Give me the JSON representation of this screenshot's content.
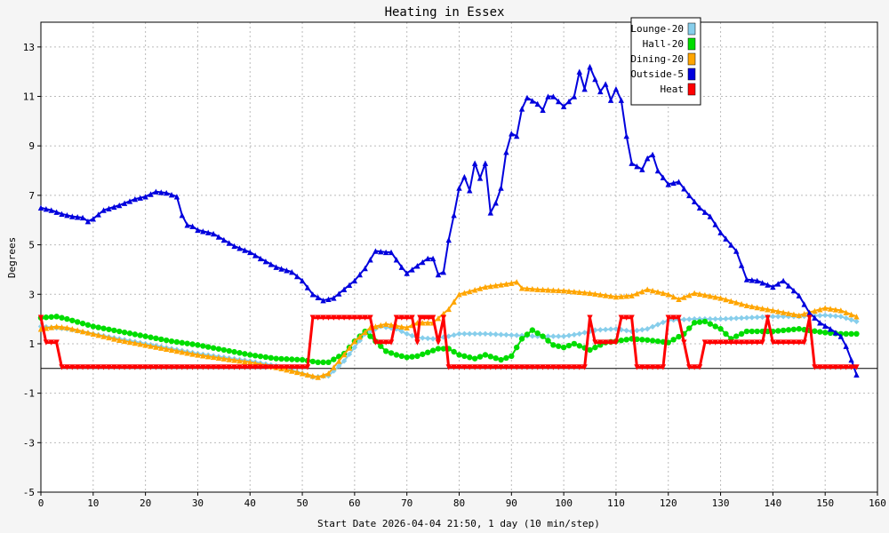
{
  "chart_data": {
    "type": "line",
    "title": "Heating in Essex",
    "xlabel": "Start Date 2026-04-04 21:50, 1 day (10 min/step)",
    "ylabel": "Degrees",
    "xlim": [
      0,
      160
    ],
    "ylim": [
      -5,
      14
    ],
    "xticks": [
      0,
      10,
      20,
      30,
      40,
      50,
      60,
      70,
      80,
      90,
      100,
      110,
      120,
      130,
      140,
      150,
      160
    ],
    "yticks": [
      -5,
      -3,
      -1,
      1,
      3,
      5,
      7,
      9,
      11,
      13
    ],
    "grid": true,
    "legend_position": "top-right",
    "series": [
      {
        "name": "Lounge-20",
        "color": "#87ceeb",
        "marker": "diamond",
        "points": [
          [
            0,
            1.7
          ],
          [
            5,
            1.6
          ],
          [
            10,
            1.4
          ],
          [
            15,
            1.2
          ],
          [
            20,
            1.0
          ],
          [
            25,
            0.8
          ],
          [
            30,
            0.6
          ],
          [
            35,
            0.45
          ],
          [
            40,
            0.3
          ],
          [
            45,
            0.1
          ],
          [
            50,
            -0.2
          ],
          [
            52,
            -0.35
          ],
          [
            55,
            -0.3
          ],
          [
            58,
            0.3
          ],
          [
            62,
            1.4
          ],
          [
            65,
            1.7
          ],
          [
            68,
            1.6
          ],
          [
            70,
            1.4
          ],
          [
            72,
            1.25
          ],
          [
            75,
            1.2
          ],
          [
            78,
            1.3
          ],
          [
            80,
            1.4
          ],
          [
            85,
            1.4
          ],
          [
            90,
            1.35
          ],
          [
            95,
            1.3
          ],
          [
            100,
            1.3
          ],
          [
            103,
            1.4
          ],
          [
            106,
            1.55
          ],
          [
            110,
            1.6
          ],
          [
            113,
            1.5
          ],
          [
            116,
            1.6
          ],
          [
            120,
            1.95
          ],
          [
            125,
            2.0
          ],
          [
            130,
            2.0
          ],
          [
            135,
            2.05
          ],
          [
            140,
            2.1
          ],
          [
            145,
            2.1
          ],
          [
            150,
            2.15
          ],
          [
            153,
            2.1
          ],
          [
            156,
            1.9
          ]
        ]
      },
      {
        "name": "Hall-20",
        "color": "#00dd00",
        "marker": "circle",
        "points": [
          [
            0,
            2.05
          ],
          [
            3,
            2.1
          ],
          [
            5,
            2.0
          ],
          [
            10,
            1.7
          ],
          [
            15,
            1.5
          ],
          [
            20,
            1.3
          ],
          [
            25,
            1.1
          ],
          [
            30,
            0.95
          ],
          [
            35,
            0.75
          ],
          [
            40,
            0.55
          ],
          [
            45,
            0.4
          ],
          [
            50,
            0.35
          ],
          [
            53,
            0.25
          ],
          [
            55,
            0.25
          ],
          [
            58,
            0.6
          ],
          [
            60,
            1.1
          ],
          [
            62,
            1.5
          ],
          [
            64,
            1.1
          ],
          [
            66,
            0.7
          ],
          [
            68,
            0.55
          ],
          [
            70,
            0.45
          ],
          [
            72,
            0.5
          ],
          [
            74,
            0.65
          ],
          [
            76,
            0.8
          ],
          [
            78,
            0.8
          ],
          [
            80,
            0.55
          ],
          [
            83,
            0.4
          ],
          [
            85,
            0.55
          ],
          [
            88,
            0.35
          ],
          [
            90,
            0.5
          ],
          [
            92,
            1.2
          ],
          [
            94,
            1.55
          ],
          [
            96,
            1.3
          ],
          [
            98,
            0.95
          ],
          [
            100,
            0.85
          ],
          [
            102,
            1.0
          ],
          [
            105,
            0.75
          ],
          [
            108,
            1.05
          ],
          [
            110,
            1.1
          ],
          [
            113,
            1.2
          ],
          [
            116,
            1.15
          ],
          [
            120,
            1.05
          ],
          [
            123,
            1.4
          ],
          [
            125,
            1.85
          ],
          [
            127,
            1.9
          ],
          [
            130,
            1.6
          ],
          [
            132,
            1.2
          ],
          [
            135,
            1.5
          ],
          [
            140,
            1.5
          ],
          [
            145,
            1.6
          ],
          [
            150,
            1.45
          ],
          [
            153,
            1.4
          ],
          [
            156,
            1.4
          ]
        ]
      },
      {
        "name": "Dining-20",
        "color": "#ffa500",
        "marker": "triangle",
        "points": [
          [
            0,
            1.6
          ],
          [
            3,
            1.7
          ],
          [
            5,
            1.65
          ],
          [
            10,
            1.4
          ],
          [
            15,
            1.15
          ],
          [
            20,
            0.95
          ],
          [
            25,
            0.75
          ],
          [
            30,
            0.55
          ],
          [
            35,
            0.4
          ],
          [
            40,
            0.25
          ],
          [
            45,
            0.05
          ],
          [
            50,
            -0.2
          ],
          [
            53,
            -0.35
          ],
          [
            55,
            -0.2
          ],
          [
            57,
            0.3
          ],
          [
            60,
            1.1
          ],
          [
            63,
            1.65
          ],
          [
            66,
            1.8
          ],
          [
            70,
            1.65
          ],
          [
            72,
            1.85
          ],
          [
            75,
            1.85
          ],
          [
            78,
            2.4
          ],
          [
            80,
            3.0
          ],
          [
            85,
            3.3
          ],
          [
            90,
            3.45
          ],
          [
            91,
            3.5
          ],
          [
            92,
            3.25
          ],
          [
            95,
            3.2
          ],
          [
            100,
            3.15
          ],
          [
            105,
            3.05
          ],
          [
            110,
            2.9
          ],
          [
            113,
            2.95
          ],
          [
            116,
            3.2
          ],
          [
            120,
            3.0
          ],
          [
            122,
            2.8
          ],
          [
            125,
            3.05
          ],
          [
            130,
            2.85
          ],
          [
            135,
            2.55
          ],
          [
            140,
            2.35
          ],
          [
            145,
            2.15
          ],
          [
            150,
            2.45
          ],
          [
            153,
            2.35
          ],
          [
            156,
            2.1
          ]
        ]
      },
      {
        "name": "Outside-5",
        "color": "#0000dd",
        "marker": "triangle",
        "points": [
          [
            0,
            6.5
          ],
          [
            2,
            6.4
          ],
          [
            4,
            6.25
          ],
          [
            6,
            6.15
          ],
          [
            8,
            6.1
          ],
          [
            9,
            5.95
          ],
          [
            10,
            6.05
          ],
          [
            12,
            6.4
          ],
          [
            15,
            6.6
          ],
          [
            18,
            6.85
          ],
          [
            20,
            6.95
          ],
          [
            22,
            7.15
          ],
          [
            24,
            7.1
          ],
          [
            26,
            6.95
          ],
          [
            27,
            6.2
          ],
          [
            28,
            5.8
          ],
          [
            29,
            5.75
          ],
          [
            30,
            5.6
          ],
          [
            33,
            5.45
          ],
          [
            35,
            5.2
          ],
          [
            37,
            4.95
          ],
          [
            40,
            4.7
          ],
          [
            42,
            4.45
          ],
          [
            45,
            4.1
          ],
          [
            48,
            3.9
          ],
          [
            50,
            3.55
          ],
          [
            52,
            3.0
          ],
          [
            54,
            2.75
          ],
          [
            56,
            2.85
          ],
          [
            58,
            3.2
          ],
          [
            60,
            3.55
          ],
          [
            62,
            4.05
          ],
          [
            64,
            4.75
          ],
          [
            66,
            4.7
          ],
          [
            67,
            4.7
          ],
          [
            69,
            4.1
          ],
          [
            70,
            3.85
          ],
          [
            72,
            4.15
          ],
          [
            74,
            4.45
          ],
          [
            75,
            4.45
          ],
          [
            76,
            3.8
          ],
          [
            77,
            3.9
          ],
          [
            78,
            5.2
          ],
          [
            79,
            6.2
          ],
          [
            80,
            7.3
          ],
          [
            81,
            7.75
          ],
          [
            82,
            7.2
          ],
          [
            83,
            8.3
          ],
          [
            84,
            7.7
          ],
          [
            85,
            8.3
          ],
          [
            86,
            6.3
          ],
          [
            87,
            6.7
          ],
          [
            88,
            7.3
          ],
          [
            89,
            8.75
          ],
          [
            90,
            9.5
          ],
          [
            91,
            9.4
          ],
          [
            92,
            10.5
          ],
          [
            93,
            10.95
          ],
          [
            95,
            10.7
          ],
          [
            96,
            10.45
          ],
          [
            97,
            11.0
          ],
          [
            98,
            11.0
          ],
          [
            100,
            10.6
          ],
          [
            102,
            11.0
          ],
          [
            103,
            12.0
          ],
          [
            104,
            11.3
          ],
          [
            105,
            12.2
          ],
          [
            107,
            11.2
          ],
          [
            108,
            11.5
          ],
          [
            109,
            10.85
          ],
          [
            110,
            11.3
          ],
          [
            111,
            10.85
          ],
          [
            112,
            9.4
          ],
          [
            113,
            8.3
          ],
          [
            115,
            8.05
          ],
          [
            116,
            8.5
          ],
          [
            117,
            8.65
          ],
          [
            118,
            8.0
          ],
          [
            120,
            7.45
          ],
          [
            122,
            7.55
          ],
          [
            124,
            7.0
          ],
          [
            126,
            6.5
          ],
          [
            128,
            6.15
          ],
          [
            130,
            5.5
          ],
          [
            133,
            4.75
          ],
          [
            135,
            3.6
          ],
          [
            137,
            3.55
          ],
          [
            140,
            3.3
          ],
          [
            142,
            3.55
          ],
          [
            145,
            2.95
          ],
          [
            147,
            2.25
          ],
          [
            149,
            1.85
          ],
          [
            151,
            1.6
          ],
          [
            153,
            1.3
          ],
          [
            154,
            0.9
          ],
          [
            155,
            0.35
          ],
          [
            156,
            -0.25
          ]
        ]
      },
      {
        "name": "Heat",
        "color": "#ff0000",
        "marker": "triangle-down",
        "points": [
          [
            0,
            2.05
          ],
          [
            1,
            1.05
          ],
          [
            3,
            1.05
          ],
          [
            4,
            0.05
          ],
          [
            51,
            0.05
          ],
          [
            52,
            2.05
          ],
          [
            63,
            2.05
          ],
          [
            64,
            1.05
          ],
          [
            67,
            1.05
          ],
          [
            68,
            2.05
          ],
          [
            71,
            2.05
          ],
          [
            72,
            1.05
          ],
          [
            72.5,
            2.05
          ],
          [
            75,
            2.05
          ],
          [
            76,
            1.05
          ],
          [
            77,
            2.05
          ],
          [
            78,
            0.05
          ],
          [
            104,
            0.05
          ],
          [
            105,
            2.05
          ],
          [
            106,
            1.05
          ],
          [
            110,
            1.05
          ],
          [
            111,
            2.05
          ],
          [
            113,
            2.05
          ],
          [
            114,
            0.05
          ],
          [
            119,
            0.05
          ],
          [
            120,
            2.05
          ],
          [
            122,
            2.05
          ],
          [
            123,
            1.05
          ],
          [
            124,
            0.05
          ],
          [
            126,
            0.05
          ],
          [
            127,
            1.05
          ],
          [
            138,
            1.05
          ],
          [
            139,
            2.05
          ],
          [
            140,
            1.05
          ],
          [
            146,
            1.05
          ],
          [
            147,
            2.05
          ],
          [
            148,
            0.05
          ],
          [
            156,
            0.05
          ]
        ]
      }
    ]
  }
}
